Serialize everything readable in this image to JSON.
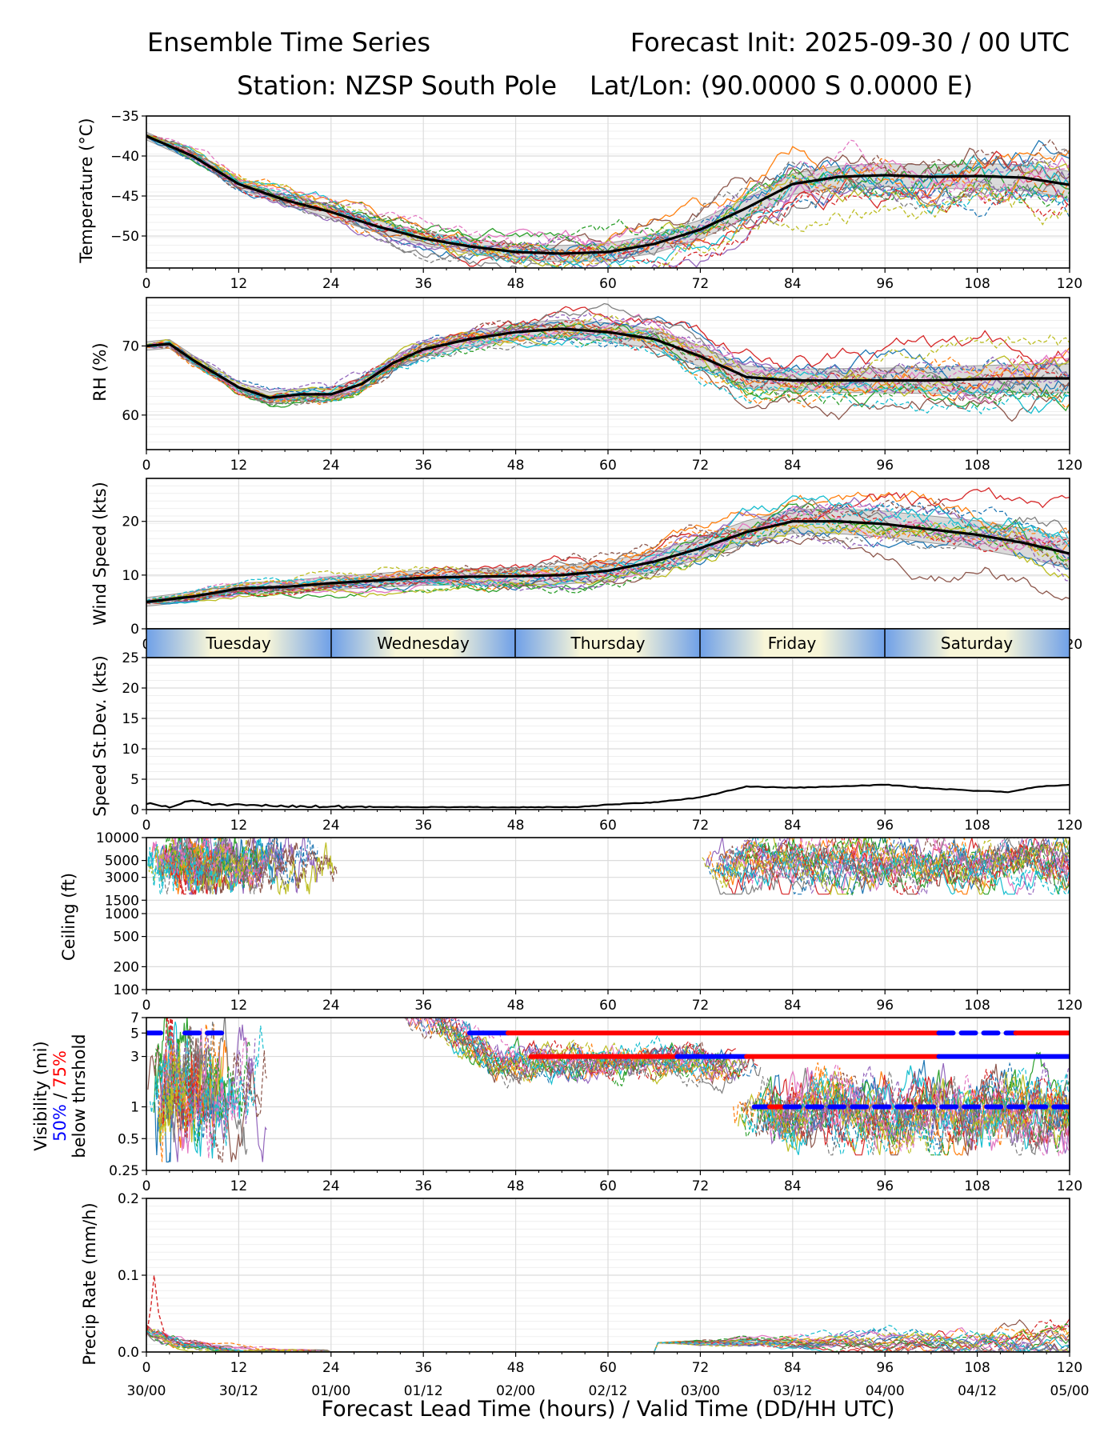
{
  "header": {
    "title_left": "Ensemble Time Series",
    "title_right": "Forecast Init: 2025-09-30 / 00 UTC",
    "station": "Station: NZSP South Pole",
    "latlon": "Lat/Lon: (90.0000 S 0.0000 E)"
  },
  "x_axis": {
    "ticks": [
      0,
      12,
      24,
      36,
      48,
      60,
      72,
      84,
      96,
      108,
      120
    ],
    "valid_times": [
      "30/00",
      "30/12",
      "01/00",
      "01/12",
      "02/00",
      "02/12",
      "03/00",
      "03/12",
      "04/00",
      "04/12",
      "05/00"
    ],
    "label": "Forecast Lead Time (hours) / Valid Time (DD/HH UTC)"
  },
  "day_strip": [
    "Tuesday",
    "Wednesday",
    "Thursday",
    "Friday",
    "Saturday"
  ],
  "visibility_label": {
    "line1": "Visibility (mi)",
    "p50": "50%",
    "slash": " / ",
    "p75": "75%",
    "line3": "below thrshold"
  },
  "colors": {
    "mean": "#000000",
    "spread": "#c8c8c8",
    "p50": "#0000ff",
    "p75": "#ff0000",
    "members": [
      "#1f77b4",
      "#ff7f0e",
      "#2ca02c",
      "#d62728",
      "#9467bd",
      "#8c564b",
      "#e377c2",
      "#7f7f7f",
      "#bcbd22",
      "#17becf"
    ]
  },
  "chart_data": [
    {
      "type": "line",
      "id": "temperature",
      "ylabel": "Temperature (°C)",
      "xlim": [
        0,
        120
      ],
      "ylim": [
        -54,
        -35
      ],
      "yticks": [
        -35,
        -40,
        -45,
        -50
      ],
      "ytick_labels": [
        "−35",
        "−40",
        "−45",
        "−50"
      ],
      "x": [
        0,
        6,
        12,
        18,
        24,
        30,
        36,
        42,
        48,
        54,
        60,
        66,
        72,
        78,
        84,
        90,
        96,
        102,
        108,
        114,
        120
      ],
      "mean": [
        -37.5,
        -40.0,
        -43.5,
        -45.5,
        -47.0,
        -48.8,
        -50.3,
        -51.3,
        -52.0,
        -52.2,
        -52.0,
        -51.0,
        -49.2,
        -46.5,
        -43.5,
        -42.6,
        -42.4,
        -42.6,
        -42.5,
        -42.7,
        -43.6
      ],
      "spread": 1.2,
      "member_spread": 3.2
    },
    {
      "type": "line",
      "id": "rh",
      "ylabel": "RH (%)",
      "xlim": [
        0,
        120
      ],
      "ylim": [
        55,
        77
      ],
      "yticks": [
        60,
        70
      ],
      "ytick_labels": [
        "60",
        "70"
      ],
      "x": [
        0,
        3,
        6,
        12,
        16,
        20,
        24,
        28,
        32,
        36,
        42,
        48,
        54,
        60,
        66,
        72,
        78,
        84,
        90,
        96,
        102,
        108,
        114,
        120
      ],
      "mean": [
        70.0,
        70.3,
        68.0,
        64.0,
        62.5,
        63.0,
        63.0,
        64.5,
        67.5,
        69.5,
        71.0,
        72.0,
        72.5,
        72.0,
        71.0,
        68.5,
        65.5,
        65.0,
        65.0,
        65.0,
        65.0,
        65.2,
        65.3,
        65.3
      ],
      "spread": 1.5,
      "member_spread": 3.0
    },
    {
      "type": "line",
      "id": "wind",
      "ylabel": "Wind Speed (kts)",
      "xlim": [
        0,
        120
      ],
      "ylim": [
        0,
        28
      ],
      "yticks": [
        0,
        10,
        20
      ],
      "ytick_labels": [
        "0",
        "10",
        "20"
      ],
      "x": [
        0,
        6,
        12,
        18,
        24,
        30,
        36,
        42,
        48,
        54,
        60,
        66,
        72,
        78,
        84,
        90,
        96,
        102,
        108,
        114,
        120
      ],
      "mean": [
        5.0,
        6.0,
        7.5,
        7.8,
        8.5,
        9.0,
        9.5,
        9.7,
        9.8,
        10.0,
        10.8,
        12.5,
        15.0,
        18.0,
        20.0,
        20.0,
        19.5,
        18.5,
        17.5,
        16.0,
        14.0
      ],
      "spread": 2.0,
      "member_spread": 3.5
    },
    {
      "type": "line",
      "id": "speed_stdev",
      "ylabel": "Speed St.Dev. (kts)",
      "xlim": [
        0,
        120
      ],
      "ylim": [
        0,
        25
      ],
      "yticks": [
        0,
        5,
        10,
        15,
        20,
        25
      ],
      "ytick_labels": [
        "0",
        "5",
        "10",
        "15",
        "20",
        "25"
      ],
      "x": [
        0,
        3,
        6,
        9,
        12,
        18,
        24,
        36,
        48,
        56,
        60,
        66,
        72,
        78,
        84,
        90,
        96,
        102,
        108,
        112,
        116,
        120
      ],
      "values": [
        1.0,
        0.4,
        1.5,
        0.8,
        0.7,
        0.6,
        0.5,
        0.4,
        0.4,
        0.4,
        0.8,
        1.2,
        2.0,
        3.8,
        3.6,
        3.8,
        4.1,
        3.5,
        3.1,
        2.9,
        3.8,
        4.1
      ]
    },
    {
      "type": "line",
      "id": "ceiling",
      "ylabel": "Ceiling (ft)",
      "scale": "log",
      "xlim": [
        0,
        120
      ],
      "ylim": [
        100,
        10000
      ],
      "yticks": [
        100,
        200,
        500,
        1000,
        1500,
        3000,
        5000,
        10000
      ],
      "ytick_labels": [
        "100",
        "200",
        "500",
        "1000",
        "1500",
        "3000",
        "5000",
        "10000"
      ],
      "segments": [
        [
          0,
          24
        ],
        [
          72,
          120
        ]
      ],
      "typical_range": [
        1800,
        10000
      ]
    },
    {
      "type": "line",
      "id": "visibility",
      "scale": "log",
      "xlim": [
        0,
        120
      ],
      "ylim": [
        0.25,
        7
      ],
      "yticks": [
        0.25,
        0.5,
        1,
        3,
        5,
        7
      ],
      "ytick_labels": [
        "0.25",
        "0.5",
        "1",
        "3",
        "5",
        "7"
      ],
      "threshold_bars": [
        {
          "level": 5,
          "color": "blue",
          "from": 0,
          "to": 2.5,
          "dashed": true
        },
        {
          "level": 5,
          "color": "blue",
          "from": 5,
          "to": 10,
          "dashed": true
        },
        {
          "level": 5,
          "color": "blue",
          "from": 42,
          "to": 47,
          "dashed": false
        },
        {
          "level": 5,
          "color": "red",
          "from": 47,
          "to": 103,
          "dashed": false
        },
        {
          "level": 5,
          "color": "blue",
          "from": 103,
          "to": 113,
          "dashed": true
        },
        {
          "level": 5,
          "color": "red",
          "from": 113,
          "to": 120,
          "dashed": false
        },
        {
          "level": 3,
          "color": "red",
          "from": 50,
          "to": 69,
          "dashed": false
        },
        {
          "level": 3,
          "color": "blue",
          "from": 69,
          "to": 78,
          "dashed": false
        },
        {
          "level": 3,
          "color": "red",
          "from": 78,
          "to": 103,
          "dashed": false
        },
        {
          "level": 3,
          "color": "blue",
          "from": 103,
          "to": 120,
          "dashed": false
        },
        {
          "level": 1,
          "color": "blue",
          "from": 79,
          "to": 81,
          "dashed": false
        },
        {
          "level": 1,
          "color": "red",
          "from": 81,
          "to": 83,
          "dashed": false
        },
        {
          "level": 1,
          "color": "blue",
          "from": 83,
          "to": 120,
          "dashed": true
        }
      ]
    },
    {
      "type": "line",
      "id": "precip",
      "ylabel": "Precip Rate (mm/h)",
      "xlim": [
        0,
        120
      ],
      "ylim": [
        0,
        0.2
      ],
      "yticks": [
        0.0,
        0.1,
        0.2
      ],
      "ytick_labels": [
        "0.0",
        "0.1",
        "0.2"
      ],
      "peak": {
        "x": 1,
        "y": 0.1
      },
      "late_max": 0.05
    }
  ]
}
